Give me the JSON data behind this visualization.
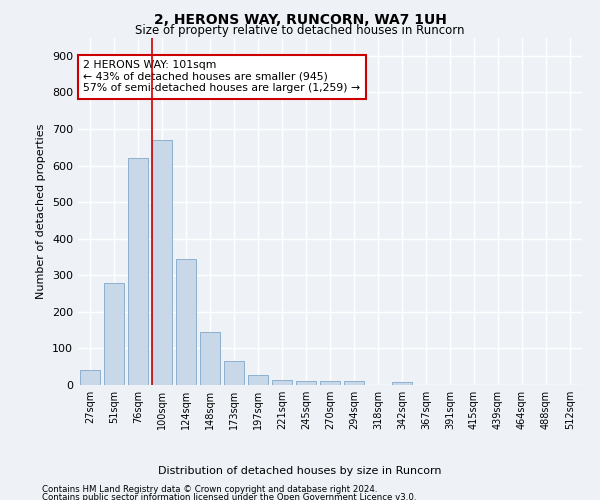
{
  "title": "2, HERONS WAY, RUNCORN, WA7 1UH",
  "subtitle": "Size of property relative to detached houses in Runcorn",
  "xlabel": "Distribution of detached houses by size in Runcorn",
  "ylabel": "Number of detached properties",
  "footer_line1": "Contains HM Land Registry data © Crown copyright and database right 2024.",
  "footer_line2": "Contains public sector information licensed under the Open Government Licence v3.0.",
  "bar_color": "#c8d8e8",
  "bar_edge_color": "#7fa8c8",
  "vline_color": "#cc0000",
  "annotation_text": "2 HERONS WAY: 101sqm\n← 43% of detached houses are smaller (945)\n57% of semi-detached houses are larger (1,259) →",
  "annotation_box_color": "#cc0000",
  "categories": [
    "27sqm",
    "51sqm",
    "76sqm",
    "100sqm",
    "124sqm",
    "148sqm",
    "173sqm",
    "197sqm",
    "221sqm",
    "245sqm",
    "270sqm",
    "294sqm",
    "318sqm",
    "342sqm",
    "367sqm",
    "391sqm",
    "415sqm",
    "439sqm",
    "464sqm",
    "488sqm",
    "512sqm"
  ],
  "values": [
    40,
    280,
    620,
    670,
    345,
    145,
    65,
    28,
    13,
    10,
    10,
    10,
    0,
    8,
    0,
    0,
    0,
    0,
    0,
    0,
    0
  ],
  "vline_x_index": 3,
  "ylim": [
    0,
    950
  ],
  "yticks": [
    0,
    100,
    200,
    300,
    400,
    500,
    600,
    700,
    800,
    900
  ],
  "background_color": "#eef2f7",
  "grid_color": "#ffffff",
  "figwidth": 6.0,
  "figheight": 5.0,
  "dpi": 100
}
